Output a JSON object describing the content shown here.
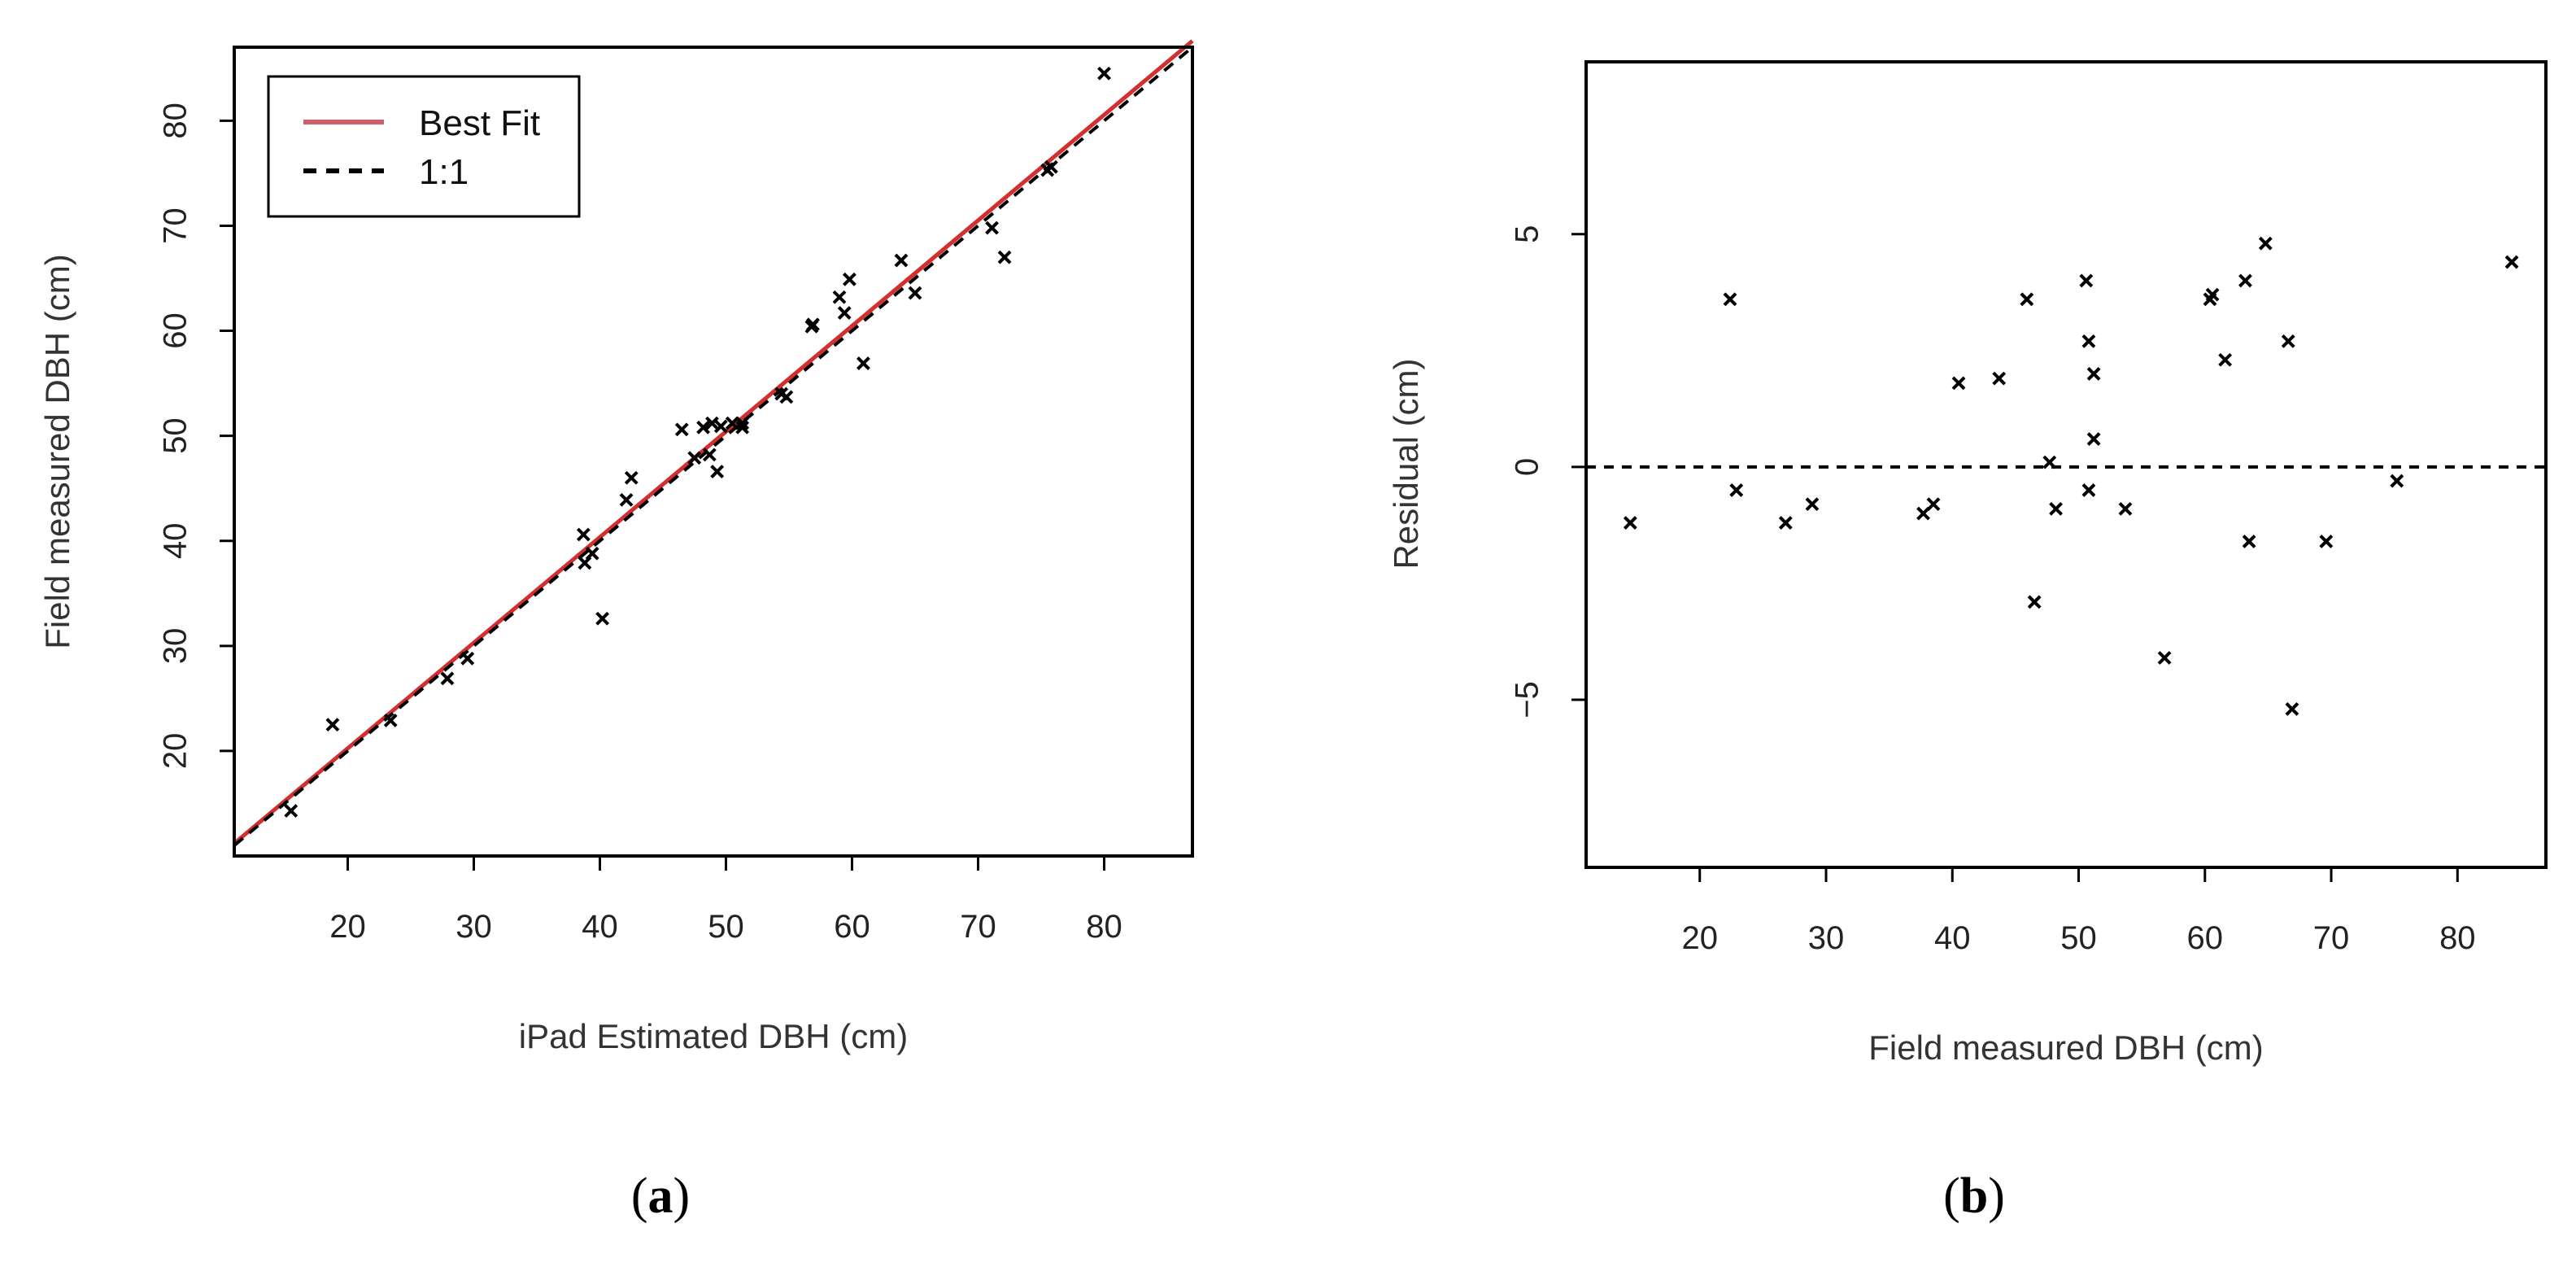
{
  "chart_data": [
    {
      "type": "scatter",
      "panel_label": "(a)",
      "panel_letter": "a",
      "xlabel": "iPad Estimated DBH (cm)",
      "ylabel": "Field measured DBH (cm)",
      "xlim": [
        11,
        87
      ],
      "ylim": [
        10,
        87
      ],
      "xticks": [
        20,
        30,
        40,
        50,
        60,
        70,
        80
      ],
      "yticks": [
        20,
        30,
        40,
        50,
        60,
        70,
        80
      ],
      "legend": {
        "position": "top-left",
        "entries": [
          {
            "label": "Best Fit",
            "style": "solid",
            "color": "#cf5f6b"
          },
          {
            "label": "1:1",
            "style": "dashed",
            "color": "#000000"
          }
        ]
      },
      "lines": [
        {
          "name": "Best Fit",
          "color": "#d32f2f",
          "x": [
            11,
            87
          ],
          "y": [
            11.2,
            87.6
          ]
        },
        {
          "name": "1:1",
          "color": "#000000",
          "x": [
            11,
            87
          ],
          "y": [
            11,
            87
          ]
        }
      ],
      "series": [
        {
          "name": "observations",
          "marker": "x",
          "x": [
            15.5,
            18.8,
            23.4,
            27.9,
            29.5,
            38.8,
            38.7,
            39.4,
            40.2,
            42.1,
            42.5,
            46.5,
            47.5,
            48.2,
            48.7,
            48.9,
            49.3,
            49.6,
            50.5,
            51.3,
            51.3,
            54.4,
            54.8,
            56.8,
            56.9,
            59.0,
            59.4,
            59.8,
            60.9,
            63.9,
            65.0,
            71.1,
            72.1,
            75.8,
            75.5,
            80.0
          ],
          "y": [
            14.3,
            22.5,
            22.9,
            26.9,
            28.8,
            37.9,
            40.6,
            38.8,
            32.6,
            43.9,
            46.0,
            50.6,
            47.9,
            50.8,
            48.2,
            51.2,
            46.6,
            50.9,
            51.2,
            51.2,
            50.8,
            54.0,
            53.7,
            60.4,
            60.6,
            63.2,
            61.7,
            64.9,
            56.9,
            66.7,
            63.6,
            69.8,
            67.0,
            75.6,
            75.3,
            84.5
          ]
        }
      ]
    },
    {
      "type": "scatter",
      "panel_label": "(b)",
      "panel_letter": "b",
      "xlabel": "Field measured DBH (cm)",
      "ylabel": "Residual (cm)",
      "xlim": [
        11,
        87
      ],
      "ylim": [
        -8.6,
        8.7
      ],
      "xticks": [
        20,
        30,
        40,
        50,
        60,
        70,
        80
      ],
      "yticks": [
        -5,
        0,
        5
      ],
      "ytick_labels": [
        "−5",
        "0",
        "5"
      ],
      "reference_line": {
        "y": 0,
        "style": "dashed"
      },
      "series": [
        {
          "name": "residuals",
          "marker": "x",
          "x": [
            14.5,
            22.4,
            22.9,
            26.8,
            28.9,
            37.7,
            38.5,
            40.5,
            43.7,
            45.9,
            46.5,
            47.7,
            48.2,
            50.6,
            50.8,
            50.8,
            51.2,
            51.2,
            53.7,
            56.8,
            60.4,
            60.6,
            61.6,
            63.2,
            63.5,
            64.8,
            66.6,
            66.9,
            69.6,
            75.2,
            84.3
          ],
          "y": [
            -1.2,
            3.6,
            -0.5,
            -1.2,
            -0.8,
            -1.0,
            -0.8,
            1.8,
            1.9,
            3.6,
            -2.9,
            0.1,
            -0.9,
            4.0,
            -0.5,
            2.7,
            2.0,
            0.6,
            -0.9,
            -4.1,
            3.6,
            3.7,
            2.3,
            4.0,
            -1.6,
            4.8,
            2.7,
            -5.2,
            -1.6,
            -0.3,
            4.4
          ]
        }
      ]
    }
  ]
}
